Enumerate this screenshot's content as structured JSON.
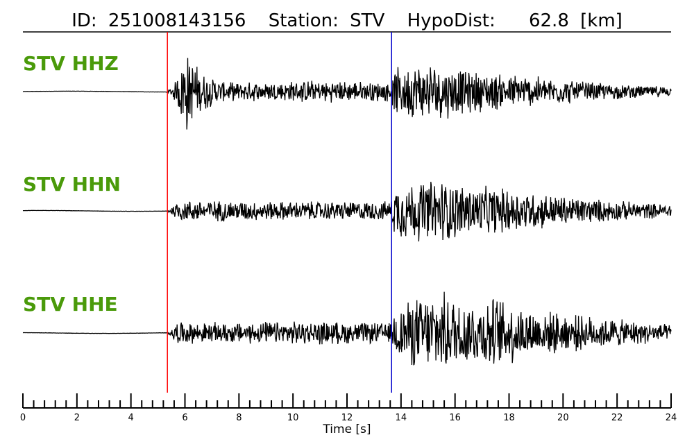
{
  "chart_data": {
    "type": "line",
    "title": {
      "id_label": "ID:",
      "id_value": "251008143156",
      "station_label": "Station:",
      "station_value": "STV",
      "dist_label": "HypoDist:",
      "dist_value": "62.8",
      "dist_unit": "[km]"
    },
    "xlabel": "Time [s]",
    "xlim": [
      0,
      24
    ],
    "x_major_ticks": [
      0,
      2,
      4,
      6,
      8,
      10,
      12,
      14,
      16,
      18,
      20,
      22,
      24
    ],
    "x_minor_step": 0.4,
    "picks": [
      {
        "phase": "P",
        "time": 5.35,
        "color": "#ff0000"
      },
      {
        "phase": "S",
        "time": 13.65,
        "color": "#0000cc"
      }
    ],
    "label_color": "#4a9a0a",
    "trace_color": "#000000",
    "series": [
      {
        "name": "STV HHZ",
        "envelope": [
          [
            0,
            0.012
          ],
          [
            5.3,
            0.012
          ],
          [
            5.45,
            0.05
          ],
          [
            5.7,
            0.25
          ],
          [
            5.95,
            0.9
          ],
          [
            6.2,
            0.7
          ],
          [
            6.6,
            0.38
          ],
          [
            7.5,
            0.18
          ],
          [
            9.5,
            0.2
          ],
          [
            10.5,
            0.22
          ],
          [
            12.5,
            0.2
          ],
          [
            13.6,
            0.2
          ],
          [
            13.8,
            0.45
          ],
          [
            14.5,
            0.55
          ],
          [
            15.5,
            0.55
          ],
          [
            16.5,
            0.42
          ],
          [
            18.5,
            0.33
          ],
          [
            20.5,
            0.22
          ],
          [
            22.5,
            0.13
          ],
          [
            24,
            0.1
          ]
        ]
      },
      {
        "name": "STV HHN",
        "envelope": [
          [
            0,
            0.012
          ],
          [
            5.3,
            0.012
          ],
          [
            5.45,
            0.05
          ],
          [
            5.7,
            0.2
          ],
          [
            6.3,
            0.22
          ],
          [
            9,
            0.19
          ],
          [
            12,
            0.19
          ],
          [
            13.6,
            0.19
          ],
          [
            13.8,
            0.55
          ],
          [
            14.5,
            0.6
          ],
          [
            15.5,
            0.65
          ],
          [
            16.5,
            0.5
          ],
          [
            18,
            0.45
          ],
          [
            20,
            0.3
          ],
          [
            22,
            0.2
          ],
          [
            24,
            0.13
          ]
        ]
      },
      {
        "name": "STV HHE",
        "envelope": [
          [
            0,
            0.012
          ],
          [
            5.3,
            0.012
          ],
          [
            5.45,
            0.05
          ],
          [
            5.7,
            0.22
          ],
          [
            6.5,
            0.2
          ],
          [
            9,
            0.22
          ],
          [
            11,
            0.23
          ],
          [
            13.6,
            0.2
          ],
          [
            13.8,
            0.5
          ],
          [
            14.5,
            0.7
          ],
          [
            15.5,
            0.8
          ],
          [
            16.5,
            0.65
          ],
          [
            17.5,
            0.72
          ],
          [
            19,
            0.45
          ],
          [
            21,
            0.33
          ],
          [
            23,
            0.22
          ],
          [
            24,
            0.16
          ]
        ]
      }
    ]
  }
}
